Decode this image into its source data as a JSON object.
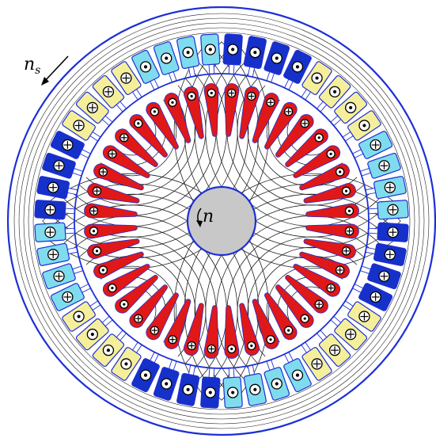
{
  "labels": {
    "stator_speed_symbol": "n",
    "stator_speed_subscript": "s",
    "rotor_speed_symbol": "n"
  },
  "colors": {
    "background": "#ffffff",
    "outline": "#1d2fd6",
    "flux_line": "#222222",
    "shaft": "#c8c8c8",
    "rotor_bar": "#e01818",
    "phase_dark_blue": "#1631c9",
    "phase_light_cyan": "#7fdcef",
    "phase_yellow": "#f5ef9c",
    "symbol": "#000000"
  },
  "stator": {
    "slot_count": 48,
    "slot_pattern": [
      "dark_blue",
      "dark_blue",
      "dark_blue",
      "dark_blue",
      "yellow",
      "yellow",
      "yellow",
      "yellow",
      "light_cyan",
      "light_cyan",
      "light_cyan",
      "light_cyan"
    ],
    "current_direction_pattern": [
      "dot",
      "dot",
      "dot",
      "dot",
      "dot",
      "dot",
      "dot",
      "dot",
      "cross",
      "cross",
      "cross",
      "cross",
      "cross",
      "cross",
      "cross",
      "cross",
      "cross",
      "cross",
      "cross",
      "cross",
      "dot",
      "dot",
      "dot",
      "dot"
    ]
  },
  "rotor": {
    "bar_count": 40,
    "current_direction_pattern": [
      "cross",
      "cross",
      "cross",
      "cross",
      "cross",
      "dot",
      "dot",
      "dot",
      "dot",
      "dot"
    ]
  }
}
